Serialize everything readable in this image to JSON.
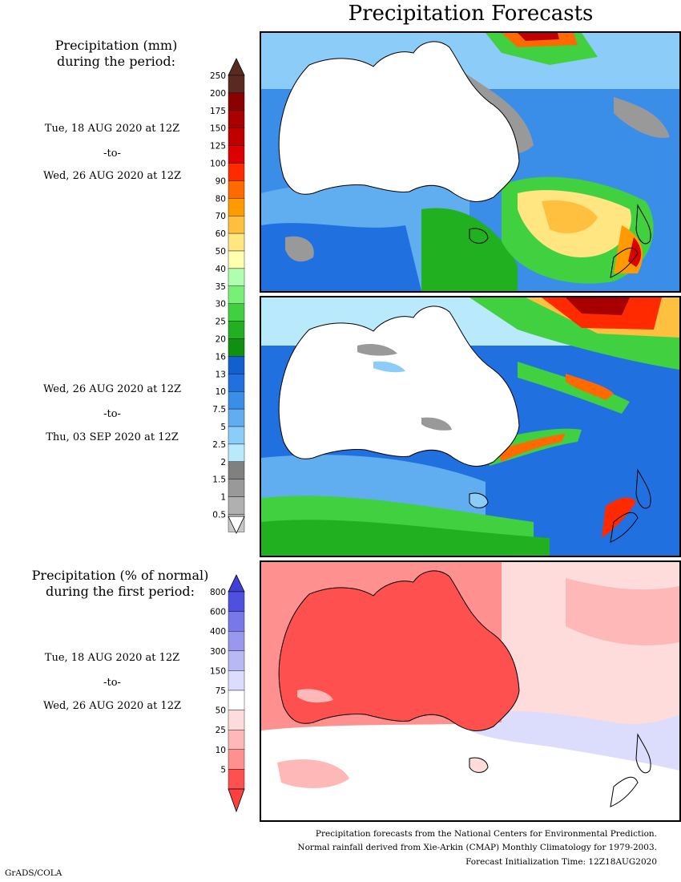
{
  "title": "Precipitation Forecasts",
  "left_labels": {
    "heading1_line1": "Precipitation (mm)",
    "heading1_line2": "during the period:",
    "period1_start": "Tue, 18 AUG 2020 at 12Z",
    "period1_to": "-to-",
    "period1_end": "Wed, 26 AUG 2020 at 12Z",
    "period2_start": "Wed, 26 AUG 2020 at 12Z",
    "period2_to": "-to-",
    "period2_end": "Thu, 03 SEP 2020 at 12Z",
    "heading2_line1": "Precipitation (% of normal)",
    "heading2_line2": "during the first period:",
    "period3_start": "Tue, 18 AUG 2020 at 12Z",
    "period3_to": "-to-",
    "period3_end": "Wed, 26 AUG 2020 at 12Z"
  },
  "colorbar_mm": {
    "labels": [
      "250",
      "200",
      "175",
      "150",
      "125",
      "100",
      "90",
      "80",
      "70",
      "60",
      "50",
      "40",
      "35",
      "30",
      "25",
      "20",
      "16",
      "13",
      "10",
      "7.5",
      "5",
      "2.5",
      "2",
      "1.5",
      "1",
      "0.5"
    ],
    "colors": [
      "#5a2a20",
      "#8b0000",
      "#a80000",
      "#c00000",
      "#dc0000",
      "#ff2a00",
      "#ff6a00",
      "#ff9a00",
      "#ffc040",
      "#ffe680",
      "#ffffb0",
      "#b0ffb0",
      "#78f078",
      "#40d040",
      "#20b020",
      "#109010",
      "#1060d0",
      "#2070e0",
      "#3a8ee8",
      "#60aef0",
      "#8cccf8",
      "#b8eafc",
      "#808080",
      "#999999",
      "#b0b0b0",
      "#c8c8c8"
    ]
  },
  "colorbar_pct": {
    "labels": [
      "800",
      "600",
      "400",
      "300",
      "150",
      "75",
      "50",
      "25",
      "10",
      "5"
    ],
    "colors": [
      "#5050e0",
      "#7878e8",
      "#9898ec",
      "#b8b8f4",
      "#dcdcfc",
      "#ffffff",
      "#ffdcdc",
      "#ffb8b8",
      "#ff9090",
      "#ff5050"
    ]
  },
  "footer": {
    "line1": "Precipitation forecasts from the National Centers for Environmental Prediction.",
    "line2": "Normal rainfall derived from Xie-Arkin (CMAP) Monthly Climatology for 1979-2003.",
    "line3": "Forecast Initialization Time: 12Z18AUG2020"
  },
  "credit": "GrADS/COLA"
}
